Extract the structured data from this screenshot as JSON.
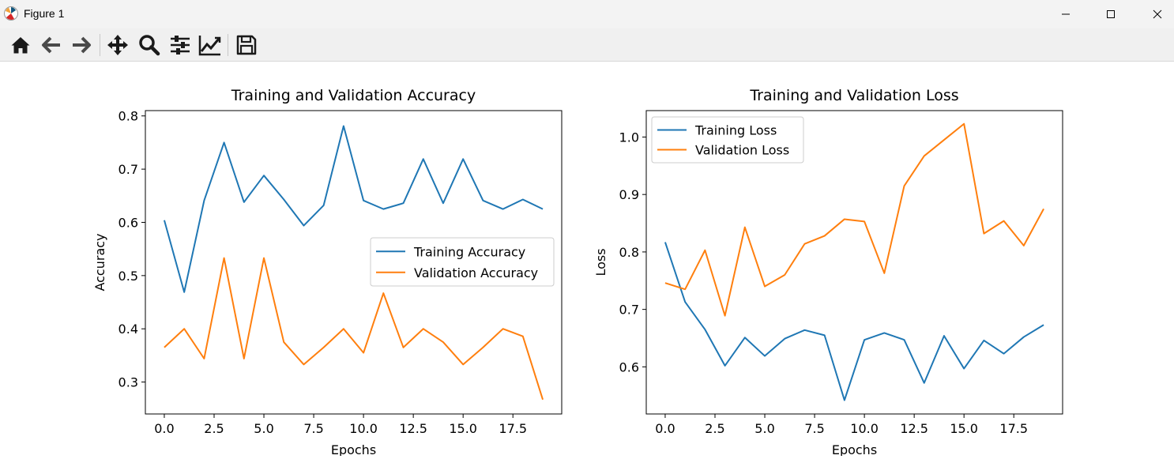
{
  "window": {
    "title": "Figure 1",
    "controls": {
      "minimize": "minimize-icon",
      "maximize": "maximize-icon",
      "close": "close-icon"
    }
  },
  "toolbar": {
    "buttons": [
      {
        "name": "home-button",
        "icon": "home-icon"
      },
      {
        "name": "back-button",
        "icon": "arrow-left-icon"
      },
      {
        "name": "forward-button",
        "icon": "arrow-right-icon"
      },
      {
        "name": "pan-button",
        "icon": "move-icon"
      },
      {
        "name": "zoom-button",
        "icon": "magnifier-icon"
      },
      {
        "name": "configure-subplots-button",
        "icon": "sliders-icon"
      },
      {
        "name": "edit-axes-button",
        "icon": "line-chart-icon"
      },
      {
        "name": "save-button",
        "icon": "floppy-disk-icon"
      }
    ]
  },
  "chart_data": [
    {
      "type": "line",
      "title": "Training and Validation Accuracy",
      "xlabel": "Epochs",
      "ylabel": "Accuracy",
      "x": [
        0,
        1,
        2,
        3,
        4,
        5,
        6,
        7,
        8,
        9,
        10,
        11,
        12,
        13,
        14,
        15,
        16,
        17,
        18,
        19
      ],
      "xlim": [
        -0.95,
        19.95
      ],
      "ylim": [
        0.24,
        0.81
      ],
      "xticks": [
        0.0,
        2.5,
        5.0,
        7.5,
        10.0,
        12.5,
        15.0,
        17.5
      ],
      "xtick_labels": [
        "0.0",
        "2.5",
        "5.0",
        "7.5",
        "10.0",
        "12.5",
        "15.0",
        "17.5"
      ],
      "yticks": [
        0.3,
        0.4,
        0.5,
        0.6,
        0.7,
        0.8
      ],
      "ytick_labels": [
        "0.3",
        "0.4",
        "0.5",
        "0.6",
        "0.7",
        "0.8"
      ],
      "legend_position": "center-right",
      "series": [
        {
          "name": "Training Accuracy",
          "color": "#1f77b4",
          "values": [
            0.604,
            0.469,
            0.641,
            0.75,
            0.638,
            0.688,
            0.643,
            0.594,
            0.632,
            0.781,
            0.641,
            0.625,
            0.636,
            0.719,
            0.636,
            0.719,
            0.641,
            0.625,
            0.643,
            0.625
          ]
        },
        {
          "name": "Validation Accuracy",
          "color": "#ff7f0e",
          "values": [
            0.365,
            0.4,
            0.344,
            0.533,
            0.344,
            0.533,
            0.375,
            0.333,
            0.365,
            0.4,
            0.355,
            0.467,
            0.365,
            0.4,
            0.375,
            0.333,
            0.365,
            0.4,
            0.386,
            0.267
          ]
        }
      ]
    },
    {
      "type": "line",
      "title": "Training and Validation Loss",
      "xlabel": "Epochs",
      "ylabel": "Loss",
      "x": [
        0,
        1,
        2,
        3,
        4,
        5,
        6,
        7,
        8,
        9,
        10,
        11,
        12,
        13,
        14,
        15,
        16,
        17,
        18,
        19
      ],
      "xlim": [
        -0.95,
        19.95
      ],
      "ylim": [
        0.518,
        1.046
      ],
      "xticks": [
        0.0,
        2.5,
        5.0,
        7.5,
        10.0,
        12.5,
        15.0,
        17.5
      ],
      "xtick_labels": [
        "0.0",
        "2.5",
        "5.0",
        "7.5",
        "10.0",
        "12.5",
        "15.0",
        "17.5"
      ],
      "yticks": [
        0.6,
        0.7,
        0.8,
        0.9,
        1.0
      ],
      "ytick_labels": [
        "0.6",
        "0.7",
        "0.8",
        "0.9",
        "1.0"
      ],
      "legend_position": "upper-left",
      "series": [
        {
          "name": "Training Loss",
          "color": "#1f77b4",
          "values": [
            0.817,
            0.713,
            0.665,
            0.602,
            0.651,
            0.619,
            0.649,
            0.664,
            0.655,
            0.542,
            0.647,
            0.659,
            0.647,
            0.572,
            0.654,
            0.597,
            0.646,
            0.623,
            0.652,
            0.673
          ]
        },
        {
          "name": "Validation Loss",
          "color": "#ff7f0e",
          "values": [
            0.746,
            0.735,
            0.803,
            0.689,
            0.843,
            0.74,
            0.76,
            0.814,
            0.828,
            0.857,
            0.853,
            0.763,
            0.915,
            0.967,
            0.995,
            1.023,
            0.832,
            0.854,
            0.811,
            0.875
          ]
        }
      ]
    }
  ]
}
